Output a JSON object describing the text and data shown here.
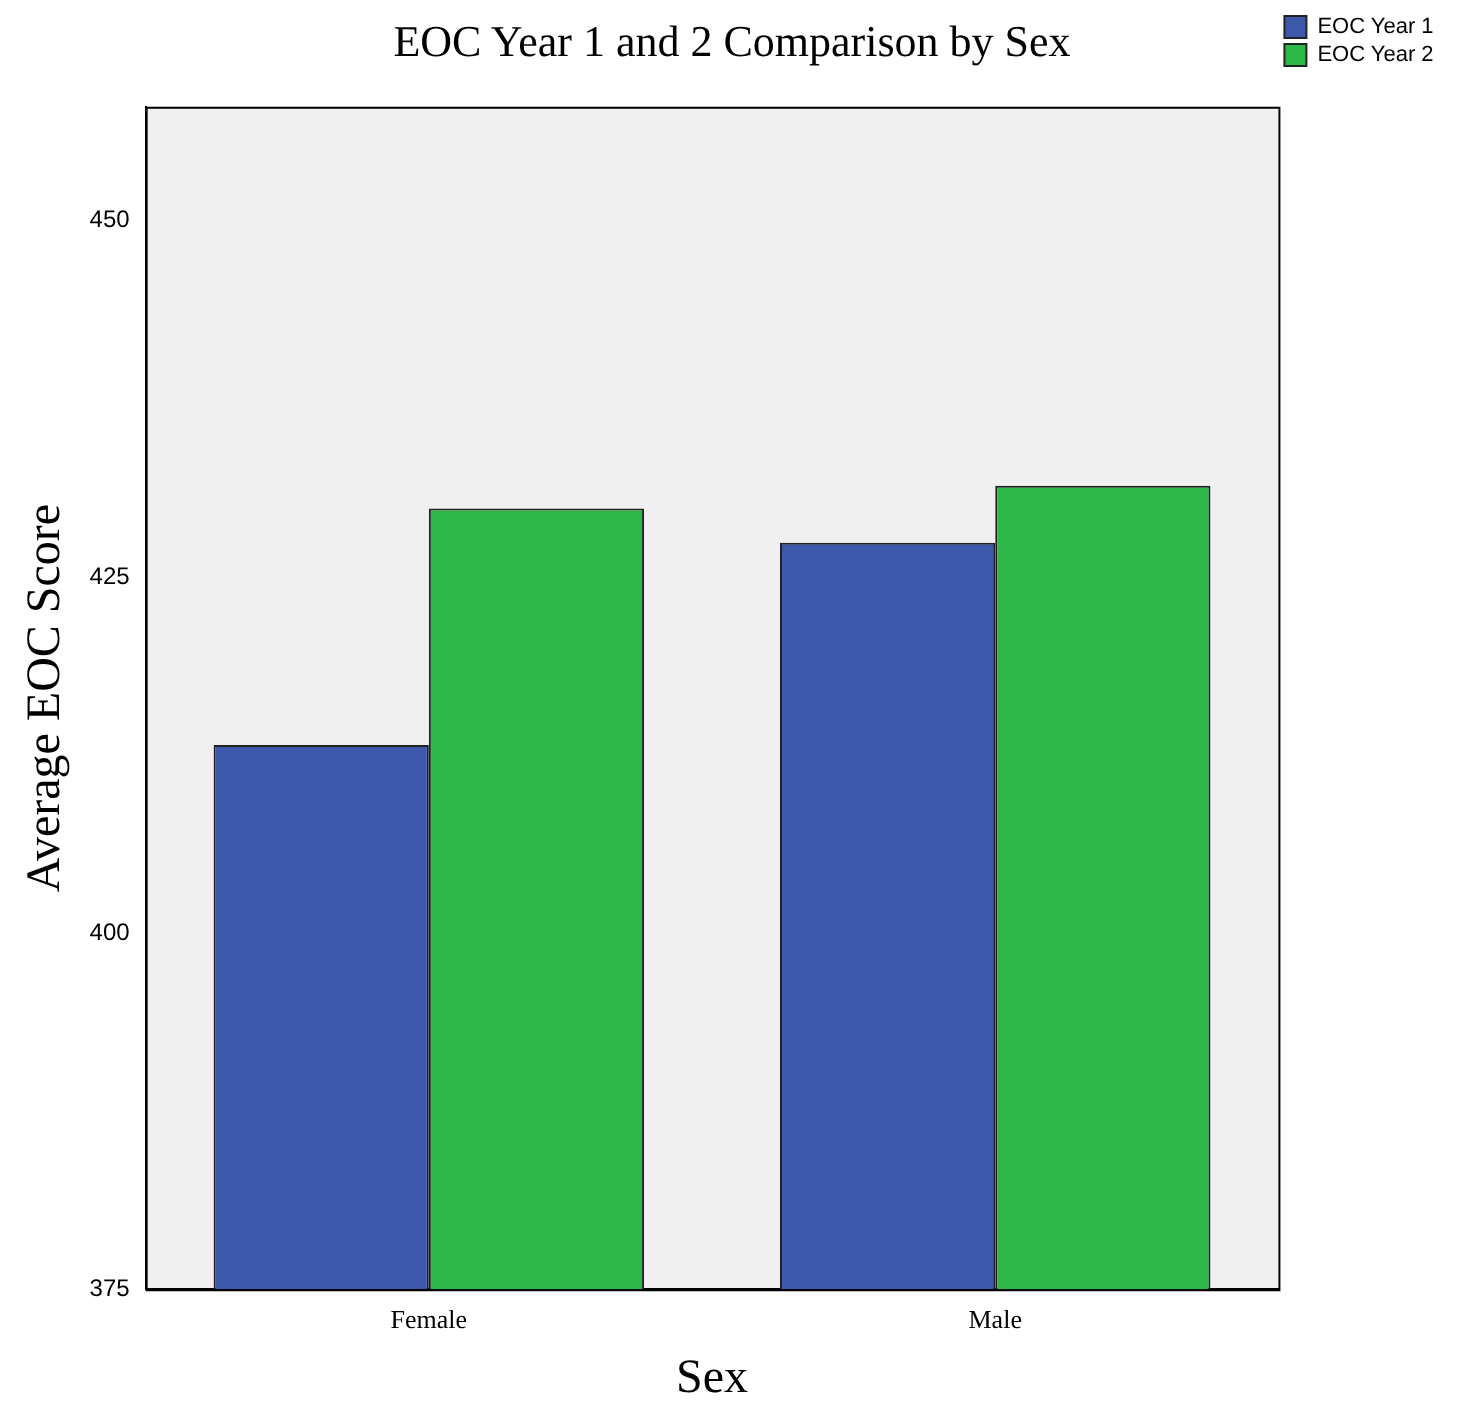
{
  "chart_data": {
    "type": "bar",
    "title": "EOC Year 1 and 2 Comparison by Sex",
    "xlabel": "Sex",
    "ylabel": "Average EOC Score",
    "categories": [
      "Female",
      "Male"
    ],
    "series": [
      {
        "name": "EOC Year 1",
        "color": "#3e58ac",
        "values": [
          413.2,
          427.4
        ]
      },
      {
        "name": "EOC Year 2",
        "color": "#2eb84a",
        "values": [
          429.8,
          431.4
        ]
      }
    ],
    "ylim": [
      375,
      458
    ],
    "yticks": [
      375,
      400,
      425,
      450
    ],
    "grid": false,
    "legend": "top right"
  }
}
